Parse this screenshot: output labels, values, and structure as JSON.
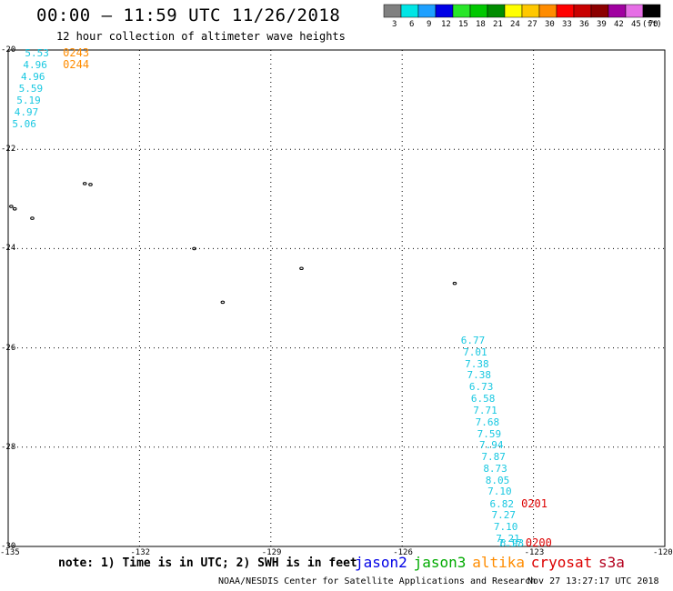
{
  "header": {
    "title": "00:00 — 11:59 UTC 11/26/2018",
    "subtitle": "12 hour collection of altimeter wave heights"
  },
  "color_scale": {
    "units": "(ft)",
    "bins": [
      {
        "label": "3",
        "color": "#808080"
      },
      {
        "label": "6",
        "color": "#00e5e5"
      },
      {
        "label": "9",
        "color": "#1ea0ff"
      },
      {
        "label": "12",
        "color": "#0000e6"
      },
      {
        "label": "15",
        "color": "#28e628"
      },
      {
        "label": "18",
        "color": "#00c800"
      },
      {
        "label": "21",
        "color": "#008c00"
      },
      {
        "label": "24",
        "color": "#ffff00"
      },
      {
        "label": "27",
        "color": "#ffc800"
      },
      {
        "label": "30",
        "color": "#ff8c00"
      },
      {
        "label": "33",
        "color": "#ff0000"
      },
      {
        "label": "36",
        "color": "#c80000"
      },
      {
        "label": "39",
        "color": "#8c0000"
      },
      {
        "label": "42",
        "color": "#a000a0"
      },
      {
        "label": "45",
        "color": "#e66ee6"
      },
      {
        "label": "70",
        "color": "#000000"
      }
    ]
  },
  "map": {
    "lon_range": [
      -135,
      -120
    ],
    "lat_range": [
      -30,
      -20
    ],
    "lat_labels": [
      {
        "lat": -20,
        "text": "-20"
      },
      {
        "lat": -22,
        "text": "-22"
      },
      {
        "lat": -24,
        "text": "-24"
      },
      {
        "lat": -26,
        "text": "-26"
      },
      {
        "lat": -28,
        "text": "-28"
      },
      {
        "lat": -30,
        "text": "-30"
      }
    ],
    "lon_labels": [
      {
        "lon": -135,
        "text": "-135"
      },
      {
        "lon": -132,
        "text": "-132"
      },
      {
        "lon": -129,
        "text": "-129"
      },
      {
        "lon": -126,
        "text": "-126"
      },
      {
        "lon": -123,
        "text": "-123"
      },
      {
        "lon": -120,
        "text": "-120"
      }
    ],
    "grid_lats": [
      -22,
      -24,
      -26,
      -28
    ],
    "grid_lons": [
      -132,
      -129,
      -126,
      -123
    ],
    "islands": [
      {
        "lon": -133.25,
        "lat": -22.69
      },
      {
        "lon": -133.12,
        "lat": -22.71
      },
      {
        "lon": -134.93,
        "lat": -23.15
      },
      {
        "lon": -134.85,
        "lat": -23.2
      },
      {
        "lon": -134.45,
        "lat": -23.39
      },
      {
        "lon": -130.75,
        "lat": -24.0
      },
      {
        "lon": -130.1,
        "lat": -25.08
      },
      {
        "lon": -128.3,
        "lat": -24.4
      },
      {
        "lon": -124.8,
        "lat": -24.7
      }
    ]
  },
  "tracks": [
    {
      "satellite": "altika",
      "color": "#19c8e1",
      "points": [
        {
          "lon": -134.39,
          "lat": -20.08,
          "swh": "5.53"
        },
        {
          "lon": -134.43,
          "lat": -20.31,
          "swh": "4.96"
        },
        {
          "lon": -134.48,
          "lat": -20.55,
          "swh": "4.96"
        },
        {
          "lon": -134.53,
          "lat": -20.79,
          "swh": "5.59"
        },
        {
          "lon": -134.58,
          "lat": -21.02,
          "swh": "5.19"
        },
        {
          "lon": -134.63,
          "lat": -21.26,
          "swh": "4.97"
        },
        {
          "lon": -134.68,
          "lat": -21.5,
          "swh": "5.06"
        }
      ]
    },
    {
      "satellite": "cryosat",
      "color": "#19c8e1",
      "points": [
        {
          "lon": -124.43,
          "lat": -25.86,
          "swh": "6.77"
        },
        {
          "lon": -124.38,
          "lat": -26.09,
          "swh": "7.01"
        },
        {
          "lon": -124.34,
          "lat": -26.33,
          "swh": "7.38"
        },
        {
          "lon": -124.29,
          "lat": -26.56,
          "swh": "7.38"
        },
        {
          "lon": -124.24,
          "lat": -26.8,
          "swh": "6.73"
        },
        {
          "lon": -124.2,
          "lat": -27.03,
          "swh": "6.58"
        },
        {
          "lon": -124.15,
          "lat": -27.27,
          "swh": "7.71"
        },
        {
          "lon": -124.1,
          "lat": -27.5,
          "swh": "7.68"
        },
        {
          "lon": -124.06,
          "lat": -27.74,
          "swh": "7.59"
        },
        {
          "lon": -124.01,
          "lat": -27.97,
          "swh": "7.94"
        },
        {
          "lon": -123.96,
          "lat": -28.21,
          "swh": "7.87"
        },
        {
          "lon": -123.92,
          "lat": -28.44,
          "swh": "8.73"
        },
        {
          "lon": -123.87,
          "lat": -28.68,
          "swh": "8.05"
        },
        {
          "lon": -123.82,
          "lat": -28.91,
          "swh": "7.10"
        },
        {
          "lon": -123.77,
          "lat": -29.15,
          "swh": "6.82"
        },
        {
          "lon": -123.73,
          "lat": -29.38,
          "swh": "7.27"
        },
        {
          "lon": -123.68,
          "lat": -29.62,
          "swh": "7.10"
        },
        {
          "lon": -123.63,
          "lat": -29.85,
          "swh": "7.21"
        },
        {
          "lon": -123.58,
          "lat": -30.09,
          "swh": "7.17"
        },
        {
          "lon": -123.54,
          "lat": -30.32,
          "swh": "6.93"
        }
      ]
    }
  ],
  "time_labels": [
    {
      "text": "0243",
      "color": "#ff8c00",
      "lon": -133.75,
      "lat": -20.08
    },
    {
      "text": "0244",
      "color": "#ff8c00",
      "lon": -133.75,
      "lat": -20.31
    },
    {
      "text": "0201",
      "color": "#dc0000",
      "lon": -123.28,
      "lat": -29.15
    },
    {
      "text": "0200",
      "color": "#dc0000",
      "lon": -123.18,
      "lat": -30.32
    }
  ],
  "footer": {
    "note": "note: 1) Time is in UTC; 2) SWH is in feet",
    "satellites": [
      {
        "name": "jason2",
        "color": "#0000e6"
      },
      {
        "name": "jason3",
        "color": "#00aa00"
      },
      {
        "name": "altika",
        "color": "#ff8c00"
      },
      {
        "name": "cryosat",
        "color": "#dc0000"
      },
      {
        "name": "s3a",
        "color": "#b4001e"
      }
    ],
    "credit": "NOAA/NESDIS Center for Satellite Applications and Research",
    "timestamp": "Nov 27 13:27:17 UTC 2018"
  }
}
